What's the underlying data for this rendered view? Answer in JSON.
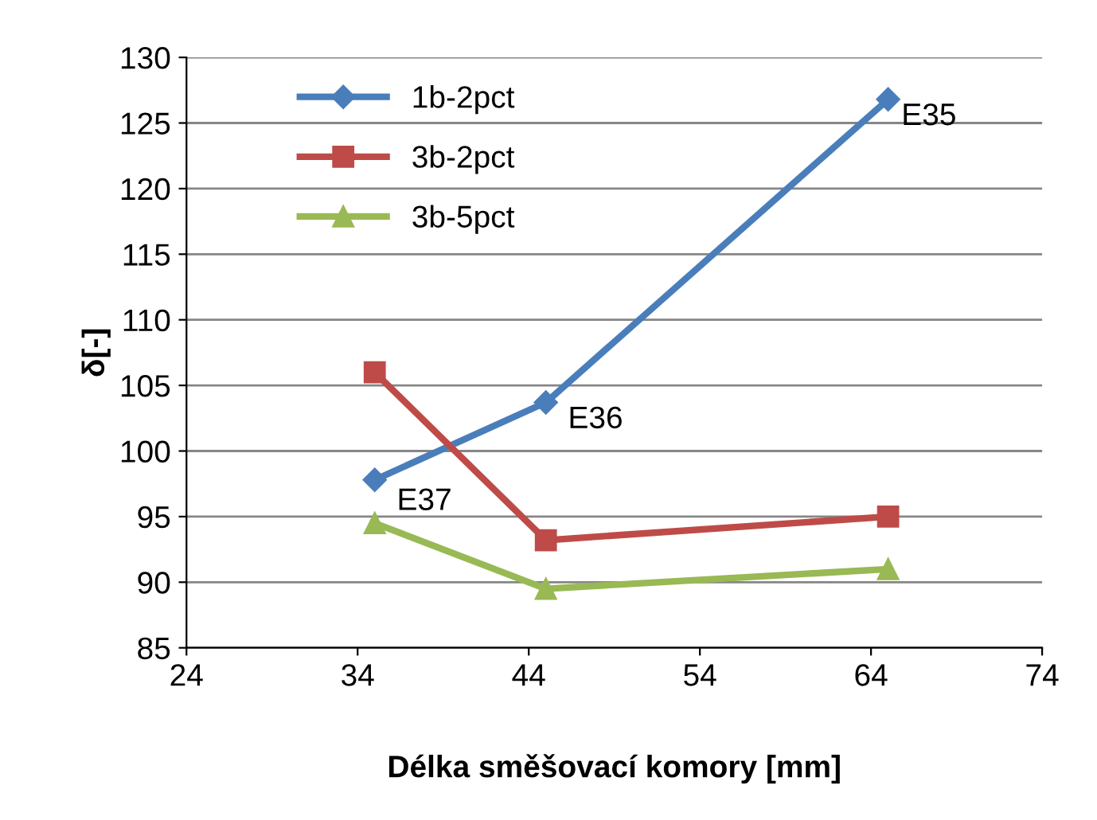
{
  "chart_data": {
    "type": "line",
    "xlabel": "Délka směšovací komory [mm]",
    "ylabel": "δ[-]",
    "xlim": [
      24,
      74
    ],
    "xticks": [
      24,
      34,
      44,
      54,
      64,
      74
    ],
    "ylim": [
      85,
      130
    ],
    "yticks": [
      85,
      90,
      95,
      100,
      105,
      110,
      115,
      120,
      125,
      130
    ],
    "grid": "y",
    "legend": "top left",
    "line_style": "solid",
    "series": [
      {
        "name": "1b-2pct",
        "color": "#4a7ebb",
        "marker": "diamond",
        "x": [
          35,
          45,
          65
        ],
        "values": [
          97.8,
          103.7,
          126.8
        ]
      },
      {
        "name": "3b-2pct",
        "color": "#be4b48",
        "marker": "square",
        "x": [
          35,
          45,
          65
        ],
        "values": [
          106,
          93.2,
          95
        ]
      },
      {
        "name": "3b-5pct",
        "color": "#98b954",
        "marker": "triangle",
        "x": [
          35,
          45,
          65
        ],
        "values": [
          94.5,
          89.5,
          91
        ]
      }
    ],
    "annotations": [
      {
        "text": "E35",
        "x": 65,
        "y": 126.8
      },
      {
        "text": "E36",
        "x": 45,
        "y": 103.7
      },
      {
        "text": "E37",
        "x": 35,
        "y": 97.8
      }
    ]
  }
}
